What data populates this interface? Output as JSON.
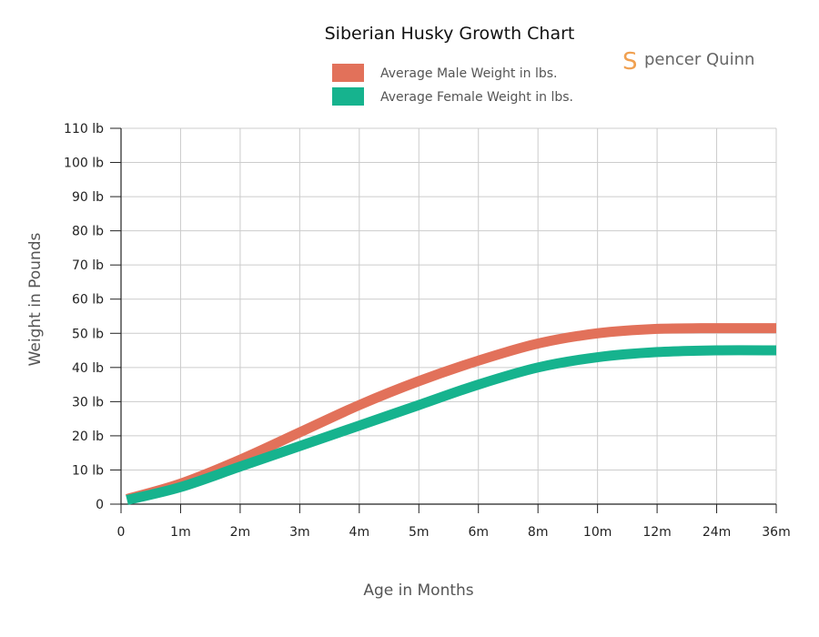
{
  "brand": {
    "initial": "S",
    "rest": "pencer Quinn",
    "color": "#f0a050"
  },
  "chart_data": {
    "type": "line",
    "title": "Siberian Husky Growth Chart",
    "xlabel": "Age in Months",
    "ylabel": "Weight in Pounds",
    "categories": [
      "0",
      "1m",
      "2m",
      "3m",
      "4m",
      "5m",
      "6m",
      "8m",
      "10m",
      "12m",
      "24m",
      "36m"
    ],
    "ylim": [
      0,
      110
    ],
    "yticks": [
      {
        "value": 0,
        "label": "0"
      },
      {
        "value": 10,
        "label": "10 lb"
      },
      {
        "value": 20,
        "label": "20 lb"
      },
      {
        "value": 30,
        "label": "30 lb"
      },
      {
        "value": 40,
        "label": "40 lb"
      },
      {
        "value": 50,
        "label": "50 lb"
      },
      {
        "value": 60,
        "label": "60 lb"
      },
      {
        "value": 70,
        "label": "70 lb"
      },
      {
        "value": 80,
        "label": "80 lb"
      },
      {
        "value": 90,
        "label": "90 lb"
      },
      {
        "value": 100,
        "label": "100 lb"
      },
      {
        "value": 110,
        "label": "110 lb"
      }
    ],
    "grid": true,
    "legend_position": "top",
    "series": [
      {
        "name": "Average Male Weight in lbs.",
        "color": "#e2715a",
        "x": [
          0.1,
          1,
          2,
          3,
          4,
          5,
          6,
          7,
          8,
          9,
          10,
          11
        ],
        "values": [
          1.5,
          6,
          13,
          21,
          29,
          36,
          42,
          47,
          50,
          51.3,
          51.5,
          51.5
        ]
      },
      {
        "name": "Average Female Weight in lbs.",
        "color": "#16b38e",
        "x": [
          0.1,
          1,
          2,
          3,
          4,
          5,
          6,
          7,
          8,
          9,
          10,
          11
        ],
        "values": [
          1.2,
          5,
          11,
          17,
          23,
          29,
          35,
          40,
          43,
          44.5,
          45,
          45
        ]
      }
    ]
  }
}
